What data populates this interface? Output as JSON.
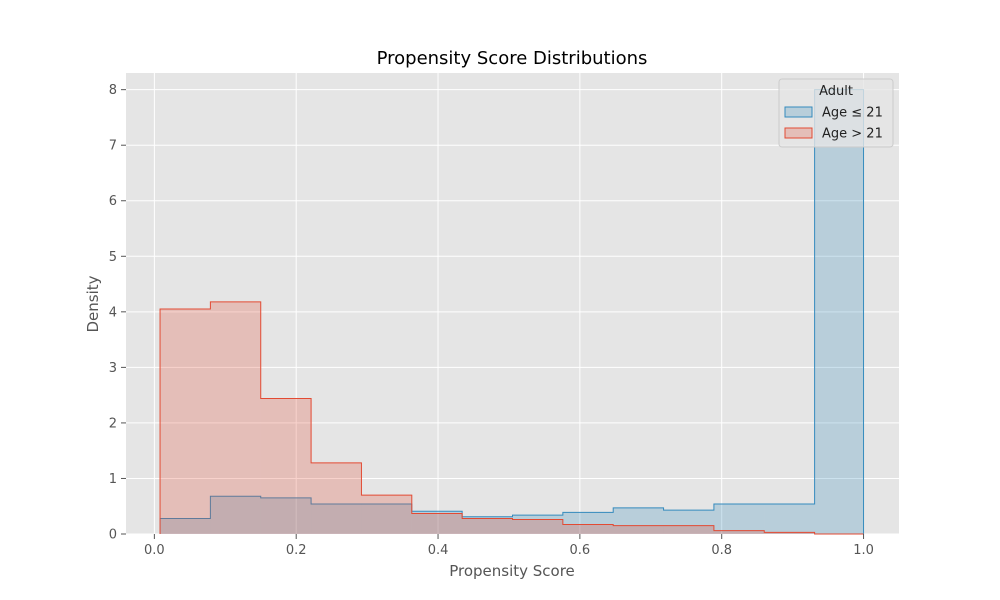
{
  "chart_data": {
    "type": "histogram",
    "title": "Propensity Score Distributions",
    "xlabel": "Propensity Score",
    "ylabel": "Density",
    "xlim": [
      -0.04,
      1.05
    ],
    "ylim": [
      0,
      8.3
    ],
    "x_ticks": [
      0.0,
      0.2,
      0.4,
      0.6,
      0.8,
      1.0
    ],
    "x_tick_labels": [
      "0.0",
      "0.2",
      "0.4",
      "0.6",
      "0.8",
      "1.0"
    ],
    "y_ticks": [
      0,
      1,
      2,
      3,
      4,
      5,
      6,
      7,
      8
    ],
    "y_tick_labels": [
      "0",
      "1",
      "2",
      "3",
      "4",
      "5",
      "6",
      "7",
      "8"
    ],
    "grid": true,
    "legend": {
      "title": "Adult",
      "position": "upper right"
    },
    "bin_edges": [
      0.008,
      0.079,
      0.15,
      0.221,
      0.292,
      0.363,
      0.434,
      0.505,
      0.576,
      0.647,
      0.718,
      0.789,
      0.86,
      0.931,
      1.0
    ],
    "series": [
      {
        "name": "Age ≤ 21",
        "color": "#348abd",
        "values": [
          0.28,
          0.68,
          0.65,
          0.54,
          0.54,
          0.41,
          0.31,
          0.34,
          0.39,
          0.47,
          0.43,
          0.54,
          0.54,
          8.0
        ]
      },
      {
        "name": "Age > 21",
        "color": "#e24a33",
        "values": [
          4.05,
          4.18,
          2.44,
          1.28,
          0.7,
          0.37,
          0.28,
          0.26,
          0.17,
          0.15,
          0.15,
          0.06,
          0.03,
          0.0
        ]
      }
    ]
  },
  "style": {
    "plot_bg": "#e5e5e5",
    "grid_color": "#ffffff",
    "fill_opacity": 0.25
  }
}
